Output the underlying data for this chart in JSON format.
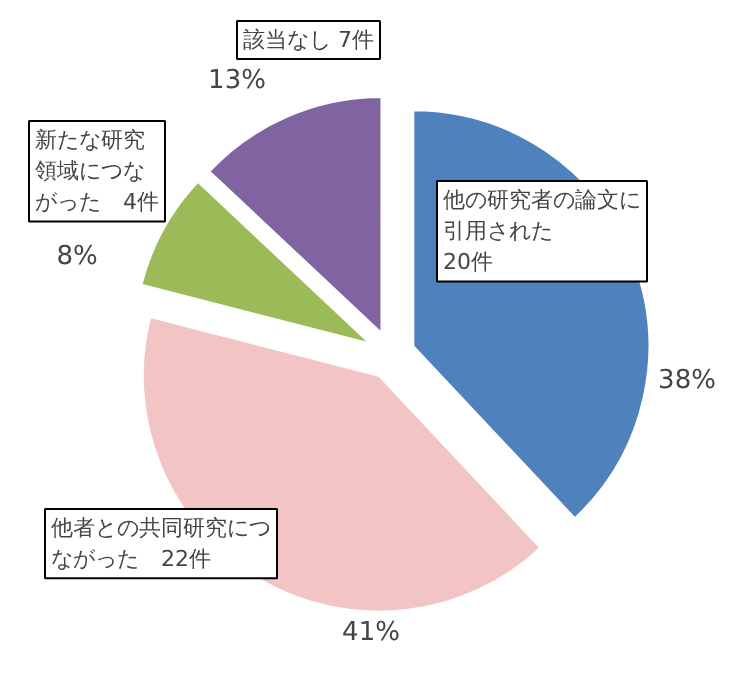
{
  "chart_data": {
    "type": "pie",
    "categories": [
      "他の研究者の論文に引用された\n20件",
      "他者との共同研究につながった　22件",
      "新たな研究領域につながった　4件",
      "該当なし 7件"
    ],
    "values": [
      38,
      41,
      8,
      13
    ],
    "value_labels": [
      "38%",
      "41%",
      "8%",
      "13%"
    ],
    "colors": [
      "#4f81bd",
      "#f2c4c4",
      "#9bbb59",
      "#8064a2"
    ]
  }
}
